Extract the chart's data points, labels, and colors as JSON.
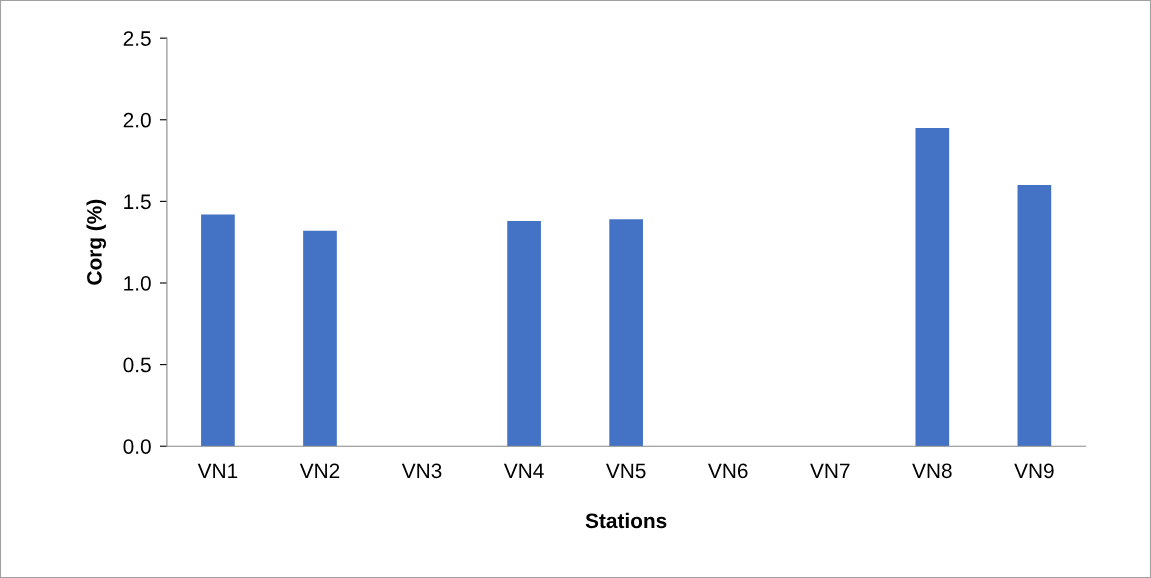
{
  "chart_data": {
    "type": "bar",
    "xlabel": "Stations",
    "ylabel": "Corg (%)",
    "categories": [
      "VN1",
      "VN2",
      "VN3",
      "VN4",
      "VN5",
      "VN6",
      "VN7",
      "VN8",
      "VN9"
    ],
    "values": [
      1.42,
      1.32,
      null,
      1.38,
      1.39,
      null,
      null,
      1.95,
      1.6
    ],
    "color": "#4472c4",
    "ylim": [
      0,
      2.5
    ],
    "yticks": [
      {
        "value": 0,
        "label": "0.0"
      },
      {
        "value": 0.5,
        "label": "0.5"
      },
      {
        "value": 1,
        "label": "1.0"
      },
      {
        "value": 1.5,
        "label": "1.5"
      },
      {
        "value": 2,
        "label": "2.0"
      },
      {
        "value": 2.5,
        "label": "2.5"
      }
    ],
    "grid": false,
    "legend": false
  }
}
